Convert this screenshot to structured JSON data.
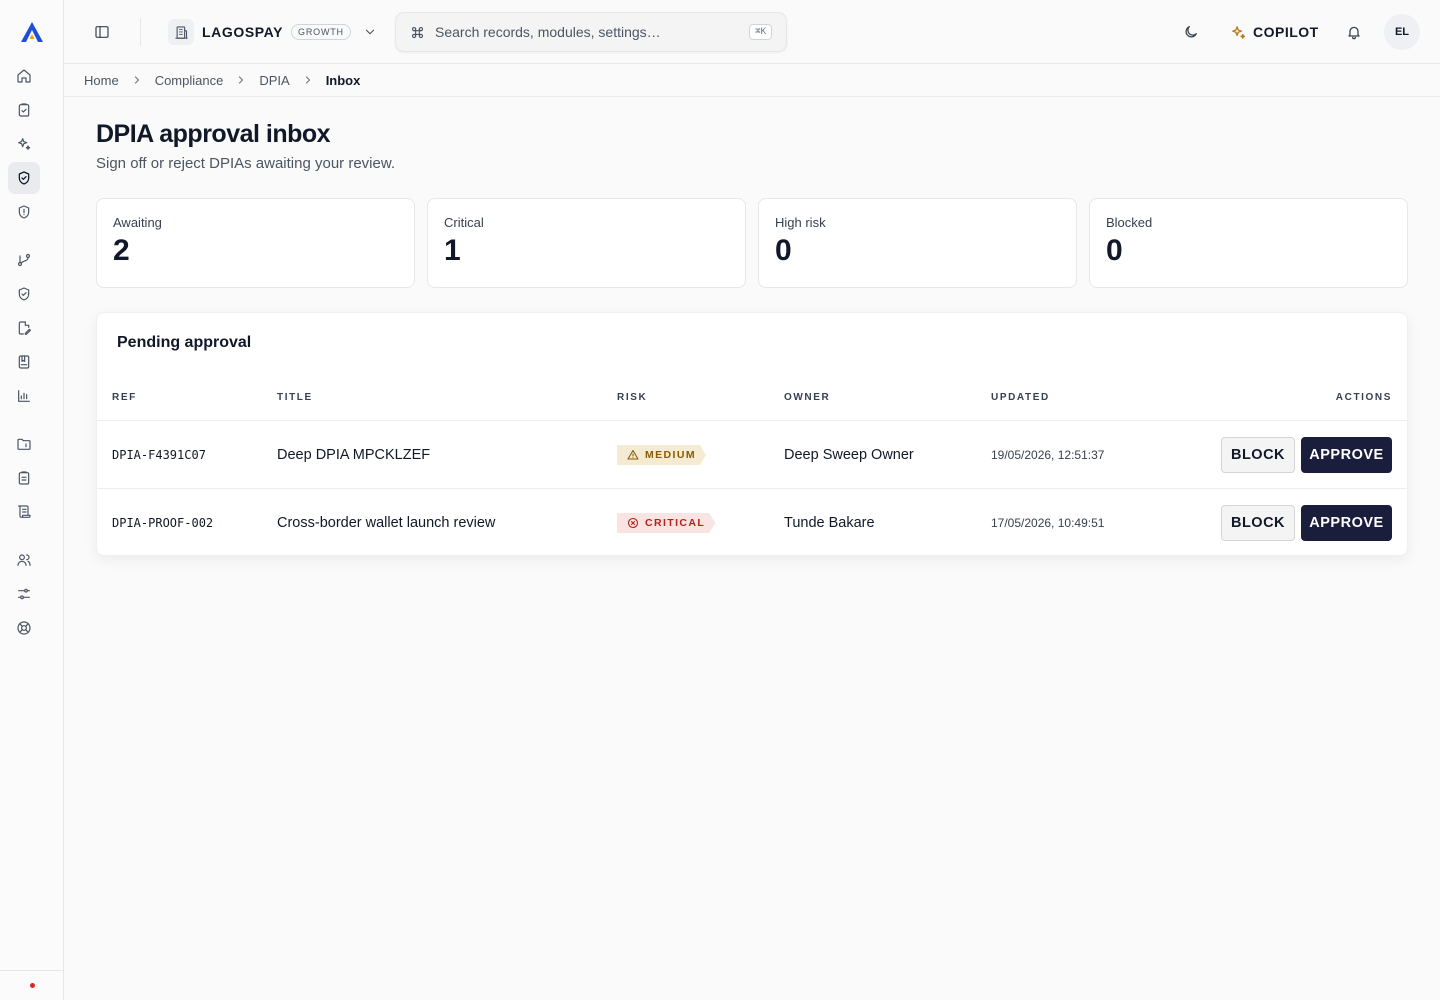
{
  "app": {
    "workspace_name": "LAGOSPAY",
    "workspace_plan": "GROWTH",
    "copilot_label": "COPILOT",
    "avatar_initials": "EL"
  },
  "search": {
    "placeholder": "Search records, modules, settings…",
    "shortcut": "⌘K"
  },
  "sidebar": {
    "items": [
      {
        "name": "home",
        "icon": "home-icon"
      },
      {
        "name": "tasks",
        "icon": "clipboard-check-icon"
      },
      {
        "name": "ai",
        "icon": "sparkles-icon"
      },
      {
        "name": "compliance",
        "icon": "shield-check-icon",
        "active": true
      },
      {
        "name": "security",
        "icon": "shield-alert-icon"
      },
      {
        "name": "workflows",
        "icon": "git-branch-icon"
      },
      {
        "name": "controls",
        "icon": "shield-icon"
      },
      {
        "name": "documents",
        "icon": "file-edit-icon"
      },
      {
        "name": "policies",
        "icon": "notebook-icon"
      },
      {
        "name": "reports",
        "icon": "bar-chart-icon"
      },
      {
        "name": "folders",
        "icon": "folder-icon"
      },
      {
        "name": "audits",
        "icon": "clipboard-list-icon"
      },
      {
        "name": "registers",
        "icon": "scroll-icon"
      },
      {
        "name": "people",
        "icon": "users-icon"
      },
      {
        "name": "settings",
        "icon": "sliders-icon"
      },
      {
        "name": "help",
        "icon": "life-buoy-icon"
      }
    ]
  },
  "breadcrumb": [
    "Home",
    "Compliance",
    "DPIA",
    "Inbox"
  ],
  "page": {
    "title": "DPIA approval inbox",
    "subtitle": "Sign off or reject DPIAs awaiting your review."
  },
  "stats": [
    {
      "label": "Awaiting",
      "value": "2"
    },
    {
      "label": "Critical",
      "value": "1"
    },
    {
      "label": "High risk",
      "value": "0"
    },
    {
      "label": "Blocked",
      "value": "0"
    }
  ],
  "table": {
    "title": "Pending approval",
    "columns": [
      "REF",
      "TITLE",
      "RISK",
      "OWNER",
      "UPDATED",
      "ACTIONS"
    ],
    "rows": [
      {
        "ref": "DPIA-F4391C07",
        "title": "Deep DPIA MPCKLZEF",
        "risk": "MEDIUM",
        "owner": "Deep Sweep Owner",
        "updated": "19/05/2026, 12:51:37",
        "block": "BLOCK",
        "approve": "APPROVE"
      },
      {
        "ref": "DPIA-PROOF-002",
        "title": "Cross-border wallet launch review",
        "risk": "CRITICAL",
        "owner": "Tunde Bakare",
        "updated": "17/05/2026, 10:49:51",
        "block": "BLOCK",
        "approve": "APPROVE"
      }
    ]
  },
  "colors": {
    "brand_navy": "#1b1d3c",
    "logo_blue": "#1d4ed8",
    "logo_amber": "#f59e0b",
    "risk_medium": "#8a5a04",
    "risk_critical": "#b42318",
    "status_dot": "#dc2626"
  }
}
